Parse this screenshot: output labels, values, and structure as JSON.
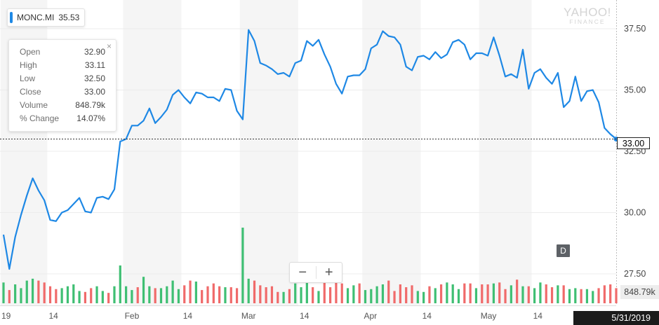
{
  "ticker": {
    "symbol": "MONC.MI",
    "last": "35.53",
    "color": "#1e88e5"
  },
  "tooltip": {
    "close_icon": "×",
    "rows": [
      {
        "label": "Open",
        "value": "32.90"
      },
      {
        "label": "High",
        "value": "33.11"
      },
      {
        "label": "Low",
        "value": "32.50"
      },
      {
        "label": "Close",
        "value": "33.00"
      },
      {
        "label": "Volume",
        "value": "848.79k"
      },
      {
        "label": "% Change",
        "value": "14.07%"
      }
    ]
  },
  "watermark": {
    "line1": "YAHOO!",
    "line2": "FINANCE"
  },
  "zoom": {
    "minus": "−",
    "plus": "+"
  },
  "range_button": "D",
  "price_label": "33.00",
  "volume_label": "848.79k",
  "date_label": "5/31/2019",
  "colors": {
    "line": "#1e88e5",
    "up": "#3fbf73",
    "down": "#f06a6a",
    "band": "#f5f5f5"
  },
  "chart_data": {
    "type": "line",
    "title": "",
    "ylim": [
      26.5,
      38.5
    ],
    "yticks": [
      27.5,
      30.0,
      32.5,
      35.0,
      37.5
    ],
    "ytick_labels": [
      "27.50",
      "30.00",
      "32.50",
      "35.00",
      "37.50"
    ],
    "xtick_labels": [
      {
        "idx": 0,
        "label": "19"
      },
      {
        "idx": 8,
        "label": "14"
      },
      {
        "idx": 21,
        "label": "Feb"
      },
      {
        "idx": 31,
        "label": "14"
      },
      {
        "idx": 41,
        "label": "Mar"
      },
      {
        "idx": 51,
        "label": "14"
      },
      {
        "idx": 62,
        "label": "Apr"
      },
      {
        "idx": 72,
        "label": "14"
      },
      {
        "idx": 82,
        "label": "May"
      },
      {
        "idx": 91,
        "label": "14"
      }
    ],
    "close": [
      29.1,
      27.7,
      29.0,
      29.9,
      30.7,
      31.4,
      30.9,
      30.5,
      29.7,
      29.65,
      30.0,
      30.1,
      30.35,
      30.6,
      30.05,
      30.0,
      30.6,
      30.65,
      30.55,
      30.95,
      32.9,
      33.0,
      33.55,
      33.55,
      33.75,
      34.25,
      33.65,
      33.9,
      34.2,
      34.8,
      35.0,
      34.7,
      34.45,
      34.9,
      34.85,
      34.7,
      34.7,
      34.55,
      35.05,
      35.0,
      34.15,
      33.8,
      37.45,
      37.0,
      36.1,
      36.0,
      35.85,
      35.65,
      35.7,
      35.55,
      36.1,
      36.2,
      37.0,
      36.8,
      37.05,
      36.45,
      35.95,
      35.25,
      34.85,
      35.55,
      35.6,
      35.6,
      35.85,
      36.7,
      36.85,
      37.4,
      37.2,
      37.15,
      36.85,
      35.95,
      35.8,
      36.35,
      36.4,
      36.25,
      36.55,
      36.3,
      36.45,
      36.95,
      37.05,
      36.85,
      36.25,
      36.5,
      36.5,
      36.4,
      37.15,
      36.4,
      35.55,
      35.65,
      35.5,
      36.65,
      35.05,
      35.7,
      35.85,
      35.5,
      35.25,
      35.7,
      34.3,
      34.55,
      35.55,
      34.55,
      34.95,
      35.0,
      34.5,
      33.45,
      33.2,
      33.0
    ],
    "volume": [
      22,
      14,
      20,
      16,
      24,
      26,
      24,
      22,
      18,
      15,
      16,
      18,
      20,
      13,
      12,
      16,
      18,
      13,
      11,
      18,
      40,
      18,
      14,
      17,
      28,
      18,
      16,
      16,
      18,
      24,
      15,
      19,
      24,
      23,
      14,
      18,
      21,
      18,
      17,
      17,
      16,
      80,
      26,
      24,
      19,
      17,
      18,
      12,
      12,
      15,
      21,
      17,
      28,
      17,
      13,
      26,
      17,
      22,
      21,
      16,
      19,
      21,
      14,
      15,
      18,
      20,
      24,
      13,
      20,
      17,
      19,
      13,
      12,
      18,
      16,
      20,
      22,
      20,
      15,
      21,
      21,
      16,
      20,
      20,
      21,
      22,
      15,
      19,
      25,
      18,
      18,
      16,
      22,
      20,
      17,
      19,
      19,
      15,
      16,
      15,
      15,
      13,
      16,
      19,
      20,
      16
    ],
    "volume_up": [
      true,
      false,
      true,
      true,
      true,
      true,
      false,
      false,
      false,
      false,
      true,
      true,
      true,
      true,
      false,
      false,
      true,
      true,
      false,
      true,
      true,
      true,
      true,
      false,
      true,
      true,
      false,
      true,
      true,
      true,
      true,
      false,
      false,
      true,
      false,
      false,
      false,
      false,
      true,
      false,
      false,
      true,
      true,
      false,
      false,
      false,
      false,
      false,
      true,
      false,
      true,
      true,
      true,
      false,
      true,
      false,
      false,
      false,
      false,
      true,
      true,
      false,
      true,
      true,
      true,
      true,
      false,
      false,
      false,
      false,
      false,
      true,
      true,
      false,
      true,
      false,
      true,
      true,
      true,
      false,
      false,
      true,
      false,
      false,
      true,
      false,
      false,
      true,
      false,
      true,
      false,
      true,
      true,
      false,
      false,
      true,
      false,
      true,
      true,
      false,
      true,
      true,
      false,
      false,
      false,
      false
    ]
  }
}
